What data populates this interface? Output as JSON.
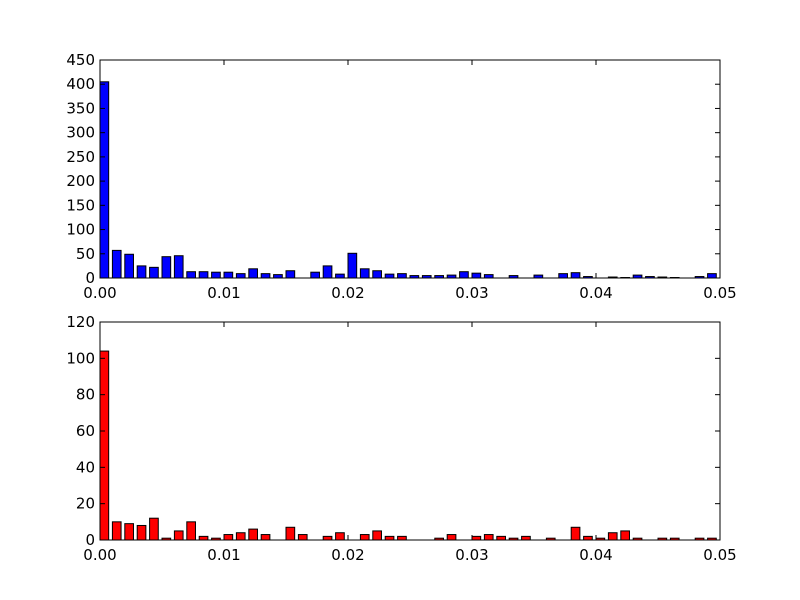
{
  "chart_data": [
    {
      "type": "bar",
      "bar_color": "#0000ff",
      "xlim": [
        0,
        0.05
      ],
      "ylim": [
        0,
        450
      ],
      "xticks": [
        "0.00",
        "0.01",
        "0.02",
        "0.03",
        "0.04",
        "0.05"
      ],
      "yticks": [
        "0",
        "50",
        "100",
        "150",
        "200",
        "250",
        "300",
        "350",
        "400",
        "450"
      ],
      "bin_width": 0.001,
      "values": [
        405,
        57,
        49,
        25,
        22,
        44,
        46,
        13,
        13,
        12,
        12,
        9,
        19,
        9,
        7,
        15,
        0,
        12,
        25,
        8,
        51,
        19,
        15,
        8,
        9,
        5,
        5,
        5,
        6,
        13,
        10,
        7,
        0,
        5,
        0,
        6,
        0,
        9,
        11,
        3,
        0,
        2,
        1,
        6,
        3,
        2,
        1,
        0,
        3,
        9
      ]
    },
    {
      "type": "bar",
      "bar_color": "#ff0000",
      "xlim": [
        0,
        0.05
      ],
      "ylim": [
        0,
        120
      ],
      "xticks": [
        "0.00",
        "0.01",
        "0.02",
        "0.03",
        "0.04",
        "0.05"
      ],
      "yticks": [
        "0",
        "20",
        "40",
        "60",
        "80",
        "100",
        "120"
      ],
      "bin_width": 0.001,
      "values": [
        104,
        10,
        9,
        8,
        12,
        1,
        5,
        10,
        2,
        1,
        3,
        4,
        6,
        3,
        0,
        7,
        3,
        0,
        2,
        4,
        0,
        3,
        5,
        2,
        2,
        0,
        0,
        1,
        3,
        0,
        2,
        3,
        2,
        1,
        2,
        0,
        1,
        0,
        7,
        2,
        1,
        4,
        5,
        1,
        0,
        1,
        1,
        0,
        1,
        1
      ]
    }
  ]
}
